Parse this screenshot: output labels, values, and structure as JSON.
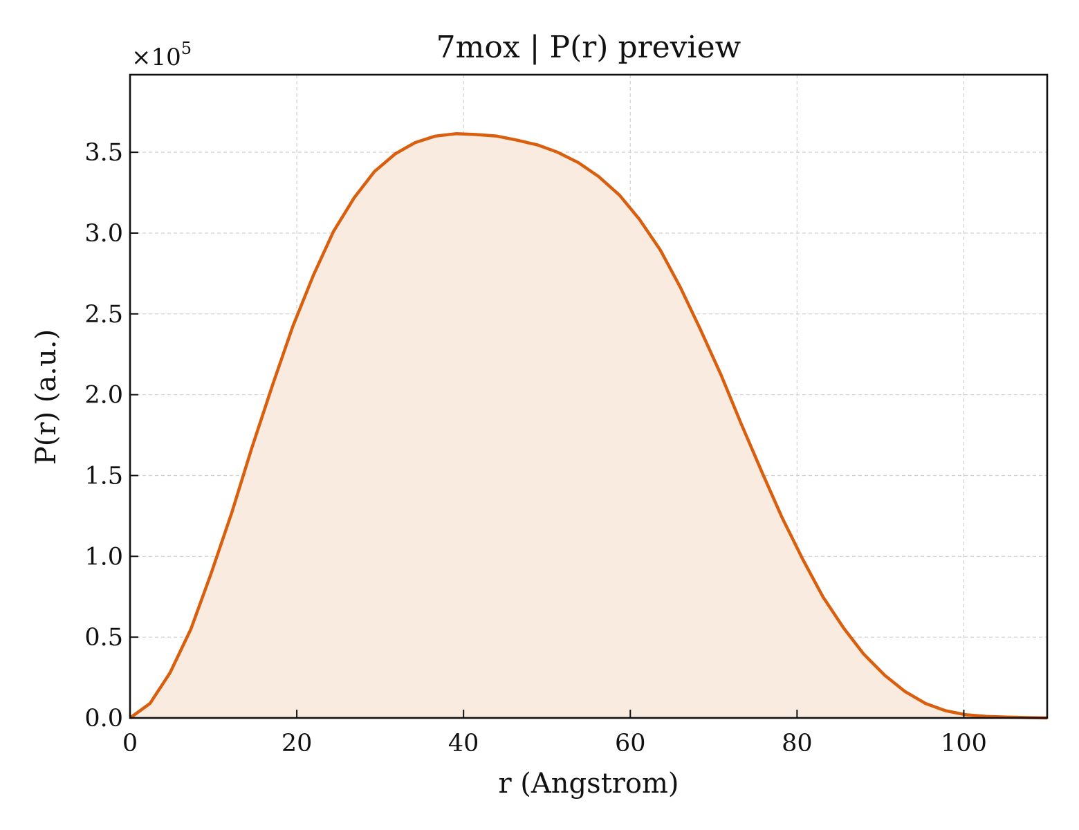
{
  "chart_data": {
    "type": "area",
    "title": "7mox | P(r) preview",
    "xlabel": "r (Angstrom)",
    "ylabel": "P(r) (a.u.)",
    "y_multiplier_label": "×10",
    "y_multiplier_exponent": "5",
    "xlim": [
      0,
      110
    ],
    "ylim": [
      0,
      3.98
    ],
    "xticks": [
      0,
      20,
      40,
      60,
      80,
      100
    ],
    "xtick_labels": [
      "0",
      "20",
      "40",
      "60",
      "80",
      "100"
    ],
    "yticks": [
      0.0,
      0.5,
      1.0,
      1.5,
      2.0,
      2.5,
      3.0,
      3.5
    ],
    "ytick_labels": [
      "0.0",
      "0.5",
      "1.0",
      "1.5",
      "2.0",
      "2.5",
      "3.0",
      "3.5"
    ],
    "grid": true,
    "line_color": "#d95f0e",
    "fill_color": "#f9ebe0",
    "series": [
      {
        "x": [
          0,
          2.4,
          4.8,
          7.3,
          9.7,
          12.2,
          14.6,
          17.1,
          19.5,
          22.0,
          24.4,
          26.9,
          29.3,
          31.8,
          34.2,
          36.6,
          39.1,
          41.5,
          44.0,
          46.4,
          48.9,
          51.3,
          53.8,
          56.2,
          58.7,
          61.1,
          63.6,
          66.0,
          68.4,
          70.9,
          73.3,
          75.8,
          78.2,
          80.7,
          83.1,
          85.6,
          88.0,
          90.5,
          92.9,
          95.4,
          97.8,
          100.2,
          102.7,
          105.1,
          107.6,
          110.0
        ],
        "y": [
          0.0,
          0.09,
          0.28,
          0.55,
          0.89,
          1.27,
          1.67,
          2.06,
          2.42,
          2.74,
          3.01,
          3.22,
          3.38,
          3.49,
          3.56,
          3.6,
          3.615,
          3.61,
          3.6,
          3.575,
          3.545,
          3.5,
          3.435,
          3.35,
          3.235,
          3.085,
          2.895,
          2.665,
          2.405,
          2.12,
          1.82,
          1.52,
          1.24,
          0.98,
          0.75,
          0.555,
          0.395,
          0.265,
          0.165,
          0.09,
          0.045,
          0.02,
          0.01,
          0.005,
          0.002,
          0.0
        ]
      }
    ]
  }
}
